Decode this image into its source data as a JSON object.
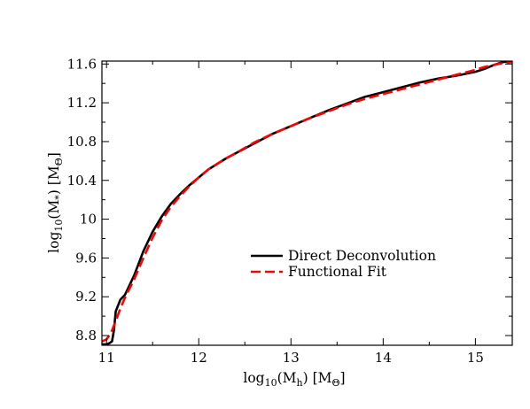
{
  "chart_data": {
    "type": "line",
    "xlim": [
      10.95,
      15.4
    ],
    "ylim": [
      8.7,
      11.63
    ],
    "x_ticks_major": [
      11,
      12,
      13,
      14,
      15
    ],
    "x_tick_labels": [
      "11",
      "12",
      "13",
      "14",
      "15"
    ],
    "x_ticks_minor": [
      11.5,
      12.5,
      13.5,
      14.5,
      15.5
    ],
    "y_ticks_major": [
      8.8,
      9.2,
      9.6,
      10.0,
      10.4,
      10.8,
      11.2,
      11.6
    ],
    "y_tick_labels": [
      "8.8",
      "9.2",
      "9.6",
      "10",
      "10.4",
      "10.8",
      "11.2",
      "11.6"
    ],
    "y_ticks_minor": [
      9.0,
      9.4,
      9.8,
      10.2,
      10.6,
      11.0,
      11.4
    ],
    "xlabel": {
      "prefix": "log",
      "sub": "10",
      "mid": "(M",
      "sub2": "h",
      "suffix": ") [M",
      "sub3": "Θ",
      "end": "]"
    },
    "ylabel": {
      "prefix": "log",
      "sub": "10",
      "mid": "(M",
      "sub2": "*",
      "suffix": ") [M",
      "sub3": "Θ",
      "end": "]"
    },
    "grid": false,
    "legend_position": "center-right",
    "series": [
      {
        "name": "Direct Deconvolution",
        "color": "#000000",
        "style": "solid",
        "x": [
          10.95,
          11.0,
          11.03,
          11.06,
          11.08,
          11.1,
          11.15,
          11.2,
          11.3,
          11.4,
          11.5,
          11.6,
          11.7,
          11.8,
          11.9,
          12.0,
          12.1,
          12.2,
          12.3,
          12.4,
          12.6,
          12.8,
          13.0,
          13.2,
          13.4,
          13.6,
          13.8,
          14.0,
          14.2,
          14.4,
          14.6,
          14.8,
          15.0,
          15.1,
          15.2,
          15.3,
          15.4
        ],
        "y": [
          8.71,
          8.71,
          8.72,
          8.74,
          8.85,
          9.05,
          9.17,
          9.22,
          9.42,
          9.67,
          9.87,
          10.03,
          10.16,
          10.26,
          10.35,
          10.43,
          10.51,
          10.57,
          10.63,
          10.68,
          10.78,
          10.88,
          10.96,
          11.04,
          11.12,
          11.19,
          11.26,
          11.31,
          11.36,
          11.41,
          11.45,
          11.48,
          11.52,
          11.55,
          11.59,
          11.62,
          11.63
        ]
      },
      {
        "name": "Functional Fit",
        "color": "#ff0000",
        "style": "dashed",
        "x": [
          10.95,
          11.0,
          11.05,
          11.1,
          11.15,
          11.2,
          11.3,
          11.4,
          11.5,
          11.6,
          11.7,
          11.8,
          11.9,
          12.0,
          12.1,
          12.2,
          12.3,
          12.4,
          12.6,
          12.8,
          13.0,
          13.2,
          13.4,
          13.6,
          13.8,
          14.0,
          14.2,
          14.4,
          14.6,
          14.8,
          15.0,
          15.1,
          15.2,
          15.3,
          15.4
        ],
        "y": [
          8.74,
          8.76,
          8.83,
          8.95,
          9.08,
          9.19,
          9.38,
          9.6,
          9.81,
          9.99,
          10.13,
          10.24,
          10.34,
          10.43,
          10.51,
          10.57,
          10.63,
          10.68,
          10.79,
          10.88,
          10.96,
          11.04,
          11.11,
          11.18,
          11.24,
          11.29,
          11.34,
          11.39,
          11.44,
          11.49,
          11.54,
          11.57,
          11.59,
          11.61,
          11.62
        ]
      }
    ]
  }
}
